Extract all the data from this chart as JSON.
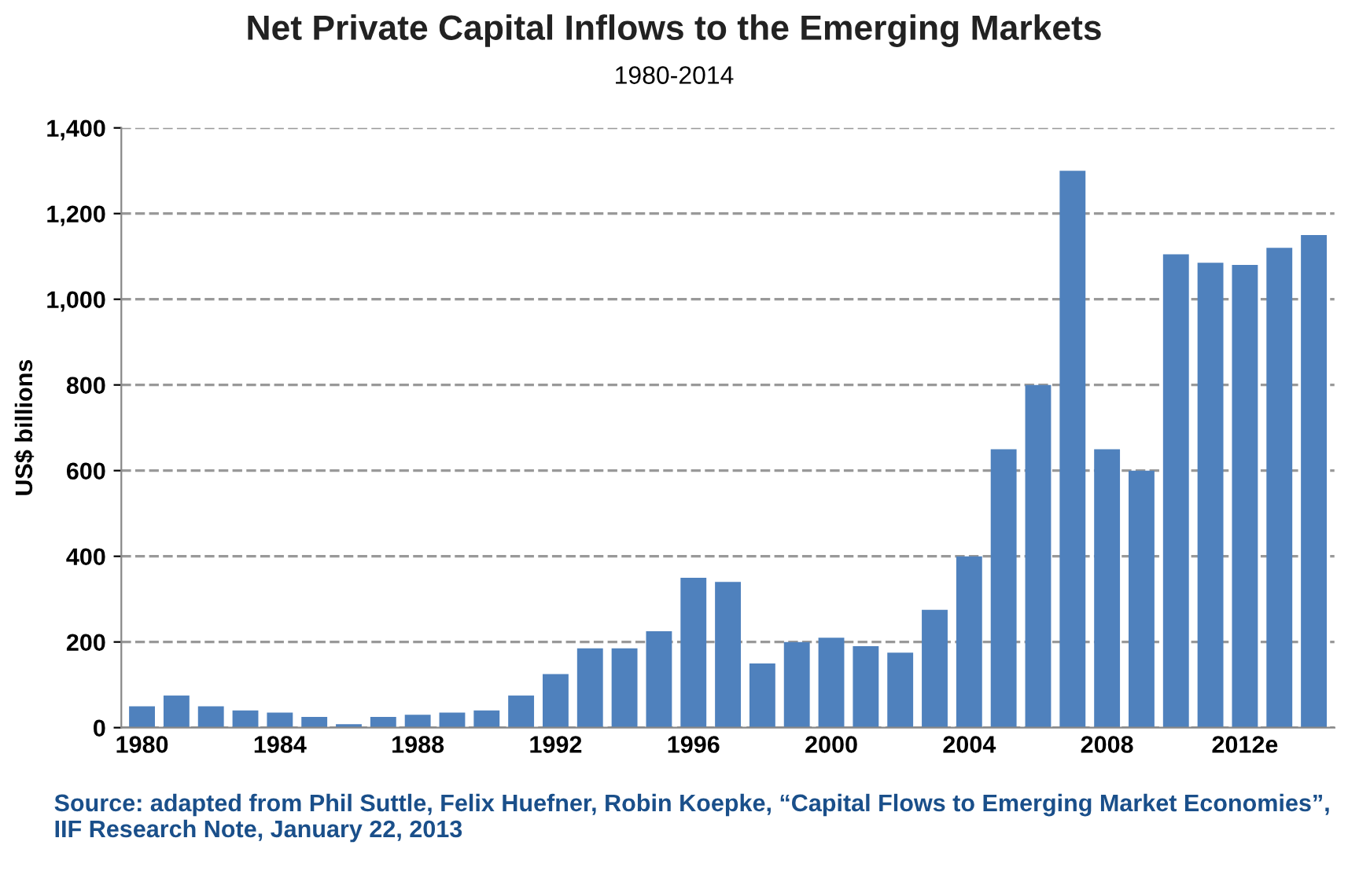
{
  "chart_data": {
    "type": "bar",
    "title": "Net Private Capital Inflows to the Emerging Markets",
    "subtitle": "1980-2014",
    "ylabel": "US$ billions",
    "categories": [
      "1980",
      null,
      null,
      null,
      "1984",
      null,
      null,
      null,
      "1988",
      null,
      null,
      null,
      "1992",
      null,
      null,
      null,
      "1996",
      null,
      null,
      null,
      "2000",
      null,
      null,
      null,
      "2004",
      null,
      null,
      null,
      "2008",
      null,
      null,
      null,
      "2012e",
      null,
      null
    ],
    "values": [
      50,
      75,
      50,
      40,
      35,
      25,
      8,
      25,
      30,
      35,
      40,
      75,
      125,
      185,
      185,
      225,
      350,
      340,
      150,
      200,
      210,
      190,
      175,
      275,
      400,
      650,
      800,
      1300,
      650,
      600,
      1105,
      1085,
      1080,
      1120,
      1150
    ],
    "color": "#4f81bd",
    "ylim": [
      0,
      1400
    ],
    "yticks": [
      {
        "value": 0,
        "label": "0"
      },
      {
        "value": 200,
        "label": "200"
      },
      {
        "value": 400,
        "label": "400"
      },
      {
        "value": 600,
        "label": "600"
      },
      {
        "value": 800,
        "label": "800"
      },
      {
        "value": 1000,
        "label": "1,000"
      },
      {
        "value": 1200,
        "label": "1,200"
      },
      {
        "value": 1400,
        "label": "1,400"
      }
    ],
    "grid": "y",
    "line_style": "dashed",
    "annotations": [
      "Source: adapted from Phil Suttle, Felix Huefner, Robin Koepke, “Capital Flows to Emerging Market Economies”, IIF Research Note, January 22, 2013"
    ]
  }
}
